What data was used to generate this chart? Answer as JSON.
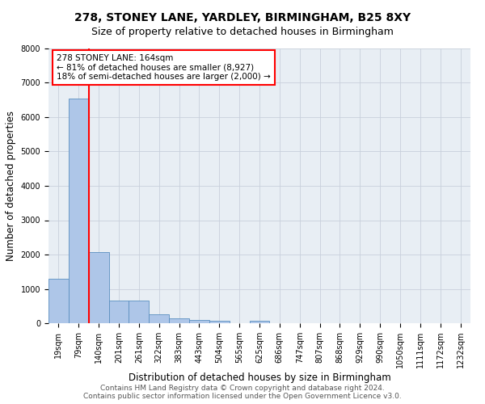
{
  "title": "278, STONEY LANE, YARDLEY, BIRMINGHAM, B25 8XY",
  "subtitle": "Size of property relative to detached houses in Birmingham",
  "xlabel": "Distribution of detached houses by size in Birmingham",
  "ylabel": "Number of detached properties",
  "bin_labels": [
    "19sqm",
    "79sqm",
    "140sqm",
    "201sqm",
    "261sqm",
    "322sqm",
    "383sqm",
    "443sqm",
    "504sqm",
    "565sqm",
    "625sqm",
    "686sqm",
    "747sqm",
    "807sqm",
    "868sqm",
    "929sqm",
    "990sqm",
    "1050sqm",
    "1111sqm",
    "1172sqm",
    "1232sqm"
  ],
  "bar_heights": [
    1300,
    6550,
    2080,
    650,
    650,
    250,
    130,
    100,
    70,
    0,
    70,
    0,
    0,
    0,
    0,
    0,
    0,
    0,
    0,
    0,
    0
  ],
  "bar_color": "#aec6e8",
  "bar_edge_color": "#5a8fc0",
  "red_line_bin": 1.5,
  "annotation_box_text": "278 STONEY LANE: 164sqm\n← 81% of detached houses are smaller (8,927)\n18% of semi-detached houses are larger (2,000) →",
  "ylim": [
    0,
    8000
  ],
  "yticks": [
    0,
    1000,
    2000,
    3000,
    4000,
    5000,
    6000,
    7000,
    8000
  ],
  "grid_color": "#c8d0dc",
  "background_color": "#e8eef4",
  "footer_line1": "Contains HM Land Registry data © Crown copyright and database right 2024.",
  "footer_line2": "Contains public sector information licensed under the Open Government Licence v3.0.",
  "title_fontsize": 10,
  "subtitle_fontsize": 9,
  "xlabel_fontsize": 8.5,
  "ylabel_fontsize": 8.5,
  "tick_fontsize": 7,
  "annotation_fontsize": 7.5,
  "footer_fontsize": 6.5
}
